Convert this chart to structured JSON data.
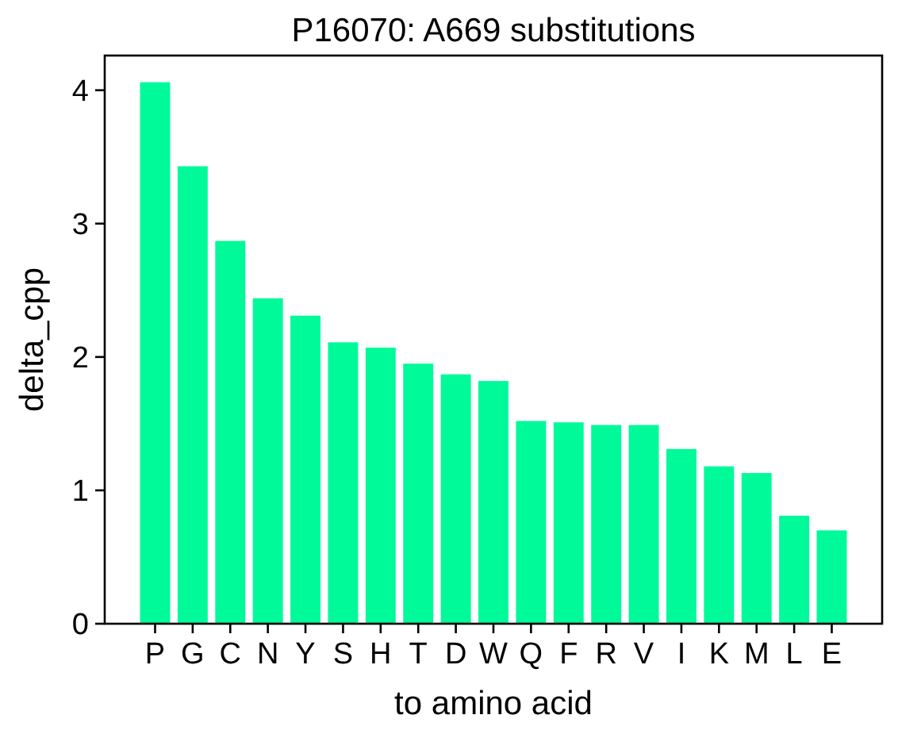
{
  "chart_data": {
    "type": "bar",
    "title": "P16070: A669 substitutions",
    "xlabel": "to amino acid",
    "ylabel": "delta_cpp",
    "categories": [
      "P",
      "G",
      "C",
      "N",
      "Y",
      "S",
      "H",
      "T",
      "D",
      "W",
      "Q",
      "F",
      "R",
      "V",
      "I",
      "K",
      "M",
      "L",
      "E"
    ],
    "values": [
      4.06,
      3.43,
      2.87,
      2.44,
      2.31,
      2.11,
      2.07,
      1.95,
      1.87,
      1.82,
      1.52,
      1.51,
      1.49,
      1.49,
      1.31,
      1.18,
      1.13,
      0.81,
      0.7
    ],
    "color": "#00fa9a",
    "ylim": [
      0,
      4.26
    ],
    "yticks": [
      0,
      1,
      2,
      3,
      4
    ],
    "grid": false
  }
}
